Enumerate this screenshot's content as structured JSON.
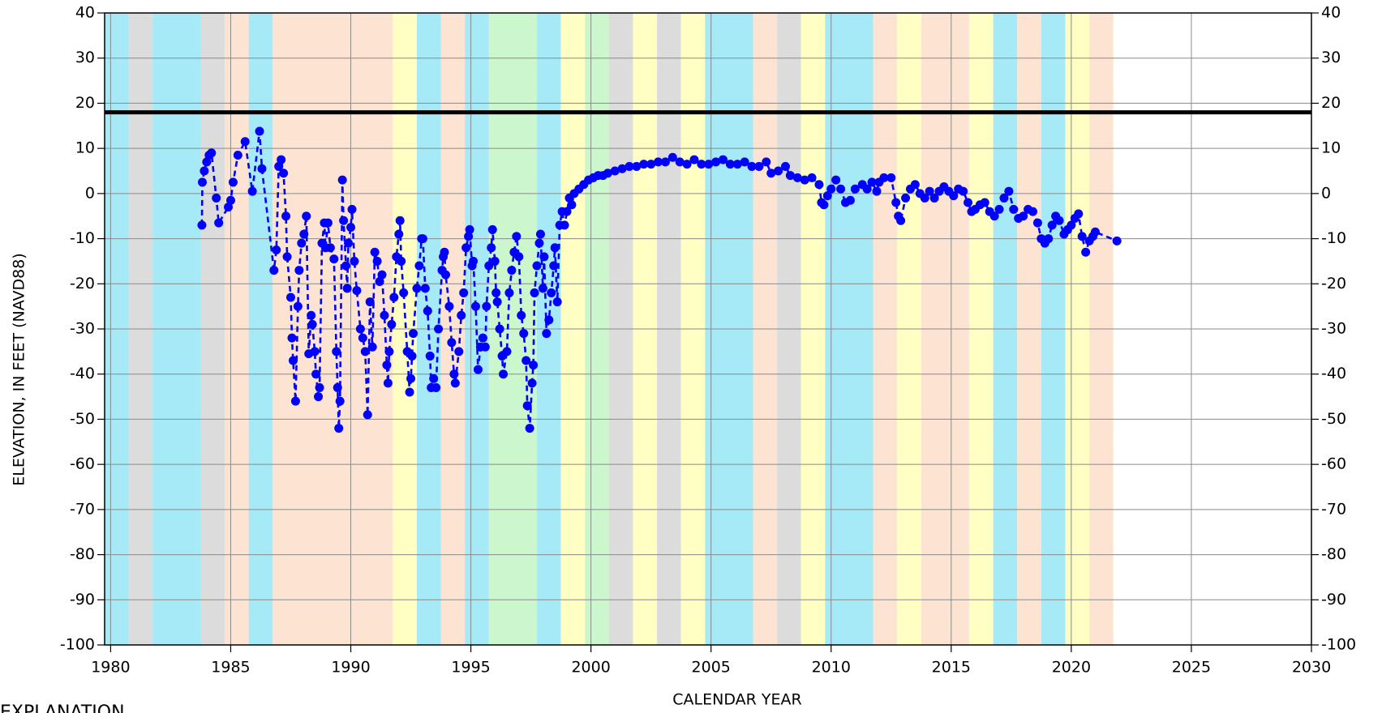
{
  "chart_data": {
    "type": "line",
    "x_label": "CALENDAR YEAR",
    "y_label": "ELEVATION, IN FEET (NAVD88)",
    "note": "EXPLANATION",
    "xlim": [
      1979.75,
      2030
    ],
    "xticks": [
      1980,
      1985,
      1990,
      1995,
      2000,
      2005,
      2010,
      2015,
      2020,
      2025,
      2030
    ],
    "ylim": [
      -100,
      40
    ],
    "yticks": [
      -100,
      -90,
      -80,
      -70,
      -60,
      -50,
      -40,
      -30,
      -20,
      -10,
      0,
      10,
      20,
      30,
      40
    ],
    "grid": true,
    "reference_line": 18,
    "bands": [
      {
        "start": 1979.75,
        "end": 1980.75,
        "color": "#a6e9f7"
      },
      {
        "start": 1980.75,
        "end": 1981.75,
        "color": "#dcdcdc"
      },
      {
        "start": 1981.75,
        "end": 1983.75,
        "color": "#a6e9f7"
      },
      {
        "start": 1983.75,
        "end": 1984.75,
        "color": "#dcdcdc"
      },
      {
        "start": 1984.75,
        "end": 1985.75,
        "color": "#fce3d2"
      },
      {
        "start": 1985.75,
        "end": 1986.75,
        "color": "#a6e9f7"
      },
      {
        "start": 1986.75,
        "end": 1991.75,
        "color": "#fce3d2"
      },
      {
        "start": 1991.75,
        "end": 1992.75,
        "color": "#ffffc4"
      },
      {
        "start": 1992.75,
        "end": 1993.75,
        "color": "#a6e9f7"
      },
      {
        "start": 1993.75,
        "end": 1994.75,
        "color": "#fce3d2"
      },
      {
        "start": 1994.75,
        "end": 1995.75,
        "color": "#a6e9f7"
      },
      {
        "start": 1995.75,
        "end": 1997.75,
        "color": "#ccf7cc"
      },
      {
        "start": 1997.75,
        "end": 1998.75,
        "color": "#a6e9f7"
      },
      {
        "start": 1998.75,
        "end": 1999.75,
        "color": "#ffffc4"
      },
      {
        "start": 1999.75,
        "end": 2000.75,
        "color": "#ccf7cc"
      },
      {
        "start": 2000.75,
        "end": 2001.75,
        "color": "#dcdcdc"
      },
      {
        "start": 2001.75,
        "end": 2002.75,
        "color": "#ffffc4"
      },
      {
        "start": 2002.75,
        "end": 2003.75,
        "color": "#dcdcdc"
      },
      {
        "start": 2003.75,
        "end": 2004.75,
        "color": "#ffffc4"
      },
      {
        "start": 2004.75,
        "end": 2006.75,
        "color": "#a6e9f7"
      },
      {
        "start": 2006.75,
        "end": 2007.75,
        "color": "#fce3d2"
      },
      {
        "start": 2007.75,
        "end": 2008.75,
        "color": "#dcdcdc"
      },
      {
        "start": 2008.75,
        "end": 2009.75,
        "color": "#ffffc4"
      },
      {
        "start": 2009.75,
        "end": 2011.75,
        "color": "#a6e9f7"
      },
      {
        "start": 2011.75,
        "end": 2012.75,
        "color": "#fce3d2"
      },
      {
        "start": 2012.75,
        "end": 2013.75,
        "color": "#ffffc4"
      },
      {
        "start": 2013.75,
        "end": 2015.75,
        "color": "#fce3d2"
      },
      {
        "start": 2015.75,
        "end": 2016.75,
        "color": "#ffffc4"
      },
      {
        "start": 2016.75,
        "end": 2017.75,
        "color": "#a6e9f7"
      },
      {
        "start": 2017.75,
        "end": 2018.75,
        "color": "#fce3d2"
      },
      {
        "start": 2018.75,
        "end": 2019.75,
        "color": "#a6e9f7"
      },
      {
        "start": 2019.75,
        "end": 2020.75,
        "color": "#ffffc4"
      },
      {
        "start": 2020.75,
        "end": 2021.75,
        "color": "#fce3d2"
      }
    ],
    "x": [
      1983.8,
      1983.82,
      1983.9,
      1984.0,
      1984.1,
      1984.2,
      1984.4,
      1984.5,
      1984.9,
      1985.0,
      1985.1,
      1985.3,
      1985.6,
      1985.9,
      1986.2,
      1986.3,
      1986.8,
      1986.9,
      1987.0,
      1987.1,
      1987.2,
      1987.3,
      1987.35,
      1987.5,
      1987.55,
      1987.6,
      1987.7,
      1987.8,
      1987.85,
      1987.95,
      1988.05,
      1988.15,
      1988.25,
      1988.35,
      1988.4,
      1988.5,
      1988.55,
      1988.65,
      1988.7,
      1988.8,
      1988.9,
      1988.95,
      1989.05,
      1989.15,
      1989.3,
      1989.4,
      1989.45,
      1989.5,
      1989.55,
      1989.65,
      1989.7,
      1989.8,
      1989.85,
      1989.9,
      1990.0,
      1990.05,
      1990.15,
      1990.25,
      1990.4,
      1990.5,
      1990.6,
      1990.7,
      1990.8,
      1990.9,
      1991.0,
      1991.1,
      1991.2,
      1991.3,
      1991.4,
      1991.5,
      1991.55,
      1991.6,
      1991.7,
      1991.8,
      1991.9,
      1992.0,
      1992.05,
      1992.1,
      1992.2,
      1992.35,
      1992.45,
      1992.5,
      1992.55,
      1992.6,
      1992.75,
      1992.85,
      1992.95,
      1993.0,
      1993.1,
      1993.2,
      1993.3,
      1993.35,
      1993.45,
      1993.55,
      1993.65,
      1993.8,
      1993.85,
      1993.9,
      1993.95,
      1994.1,
      1994.2,
      1994.3,
      1994.35,
      1994.5,
      1994.6,
      1994.7,
      1994.8,
      1994.9,
      1994.95,
      1995.05,
      1995.1,
      1995.2,
      1995.3,
      1995.4,
      1995.5,
      1995.6,
      1995.65,
      1995.75,
      1995.85,
      1995.9,
      1996.0,
      1996.05,
      1996.1,
      1996.2,
      1996.3,
      1996.35,
      1996.5,
      1996.6,
      1996.7,
      1996.8,
      1996.9,
      1997.0,
      1997.1,
      1997.2,
      1997.3,
      1997.35,
      1997.45,
      1997.55,
      1997.6,
      1997.65,
      1997.75,
      1997.85,
      1997.9,
      1998.0,
      1998.05,
      1998.15,
      1998.25,
      1998.35,
      1998.45,
      1998.5,
      1998.6,
      1998.7,
      1998.8,
      1998.9,
      1999.0,
      1999.1,
      1999.2,
      1999.3,
      1999.5,
      1999.7,
      1999.9,
      2000.1,
      2000.3,
      2000.5,
      2000.7,
      2001.0,
      2001.3,
      2001.6,
      2001.9,
      2002.2,
      2002.5,
      2002.8,
      2003.1,
      2003.4,
      2003.7,
      2004.0,
      2004.3,
      2004.6,
      2004.9,
      2005.2,
      2005.5,
      2005.8,
      2006.1,
      2006.4,
      2006.7,
      2007.0,
      2007.3,
      2007.5,
      2007.8,
      2008.1,
      2008.3,
      2008.6,
      2008.9,
      2009.2,
      2009.5,
      2009.6,
      2009.7,
      2009.85,
      2010.0,
      2010.2,
      2010.4,
      2010.6,
      2010.8,
      2011.0,
      2011.3,
      2011.5,
      2011.7,
      2011.9,
      2012.0,
      2012.2,
      2012.5,
      2012.7,
      2012.8,
      2012.9,
      2013.1,
      2013.3,
      2013.5,
      2013.7,
      2013.9,
      2014.1,
      2014.3,
      2014.5,
      2014.7,
      2014.9,
      2015.1,
      2015.3,
      2015.5,
      2015.7,
      2015.85,
      2016.0,
      2016.2,
      2016.4,
      2016.6,
      2016.8,
      2017.0,
      2017.2,
      2017.4,
      2017.6,
      2017.8,
      2018.0,
      2018.2,
      2018.4,
      2018.6,
      2018.75,
      2018.9,
      2019.05,
      2019.2,
      2019.35,
      2019.5,
      2019.7,
      2019.85,
      2020.0,
      2020.15,
      2020.3,
      2020.45,
      2020.6,
      2020.75,
      2020.9,
      2021.0,
      2021.9
    ],
    "series": [
      {
        "color": "#0000ff",
        "values": [
          -7,
          2.5,
          5,
          7,
          8.5,
          9,
          -1,
          -6.5,
          -3,
          -1.5,
          2.5,
          8.5,
          11.5,
          0.5,
          13.8,
          5.5,
          -17,
          -12.5,
          6,
          7.5,
          4.5,
          -5,
          -14,
          -23,
          -32,
          -37,
          -46,
          -25,
          -17,
          -11,
          -9,
          -5,
          -35.5,
          -27,
          -29,
          -35,
          -40,
          -45,
          -43,
          -11,
          -6.5,
          -12,
          -6.5,
          -12,
          -14.5,
          -35,
          -43,
          -52,
          -46,
          3,
          -6,
          -16,
          -21,
          -11,
          -7.5,
          -3.5,
          -15,
          -21.5,
          -30,
          -32,
          -35,
          -49,
          -24,
          -34,
          -13,
          -15,
          -19.5,
          -18,
          -27,
          -38,
          -42,
          -35,
          -29,
          -23,
          -14,
          -9,
          -6,
          -15,
          -22,
          -35,
          -44,
          -41,
          -36,
          -31,
          -21,
          -16,
          -10,
          -10,
          -21,
          -26,
          -36,
          -43,
          -41,
          -43,
          -30,
          -17,
          -14,
          -13,
          -18,
          -25,
          -33,
          -40,
          -42,
          -35,
          -27,
          -22,
          -12,
          -9.5,
          -8,
          -16,
          -15,
          -25,
          -39,
          -34,
          -32,
          -34,
          -25,
          -16,
          -12,
          -8,
          -15,
          -22,
          -24,
          -30,
          -36,
          -40,
          -35,
          -22,
          -17,
          -13,
          -9.5,
          -14,
          -27,
          -31,
          -37,
          -47,
          -52,
          -42,
          -38,
          -22,
          -16,
          -11,
          -9,
          -21,
          -14,
          -31,
          -28,
          -22,
          -16,
          -12,
          -24,
          -7,
          -4,
          -7,
          -4,
          -1,
          -2.5,
          0,
          1,
          2,
          3,
          3.5,
          4,
          4,
          4.5,
          5,
          5.5,
          6,
          6,
          6.5,
          6.5,
          7,
          7,
          8,
          7,
          6.5,
          7.5,
          6.5,
          6.5,
          7,
          7.5,
          6.5,
          6.5,
          7,
          6,
          6,
          7,
          4.5,
          5,
          6,
          4,
          3.5,
          3,
          3.5,
          2,
          -2,
          -2.5,
          -0.5,
          1,
          3,
          1,
          -2,
          -1.5,
          1,
          2,
          1,
          2.5,
          0.5,
          2.5,
          3.5,
          3.5,
          -2,
          -5,
          -6,
          -1,
          1,
          2,
          0,
          -1,
          0.5,
          -1,
          0.5,
          1.5,
          0.5,
          -0.5,
          1,
          0.5,
          -2,
          -4,
          -3.5,
          -2.5,
          -2,
          -4,
          -5,
          -3.5,
          -1,
          0.5,
          -3.5,
          -5.5,
          -5,
          -3.5,
          -4,
          -6.5,
          -10,
          -11,
          -10,
          -7,
          -5,
          -6,
          -9,
          -8,
          -7,
          -5.5,
          -4.5,
          -9.5,
          -13,
          -10.5,
          -9.5,
          -8.5,
          -10.5
        ]
      }
    ]
  }
}
